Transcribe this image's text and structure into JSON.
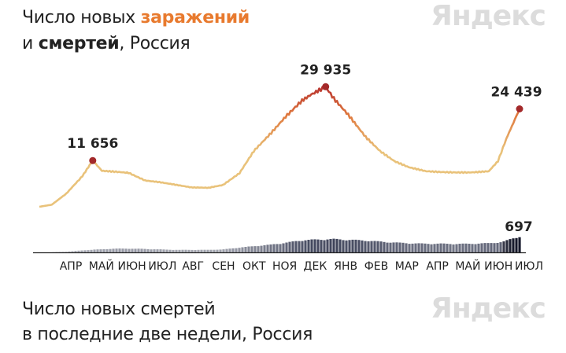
{
  "header": {
    "title_part1": "Число новых ",
    "title_accent": "заражений",
    "title_part2": "и ",
    "title_bold": "смертей",
    "title_part3": ", Россия"
  },
  "logo_text": "Яндекс",
  "footer": {
    "line1": "Число новых смертей",
    "line2": "в последние две недели, Россия"
  },
  "colors": {
    "cases_low": "#e9c27a",
    "cases_mid": "#e07b3f",
    "cases_high": "#b8322e",
    "peak_dot": "#a3292a",
    "deaths_bar": "#3a3f56",
    "deaths_bar_highlight": "#15182a",
    "accent": "#e87a2e"
  },
  "chart_data": [
    {
      "type": "line",
      "series": [
        {
          "values": [
            {
              "x": "2020-03-20",
              "y": 200
            },
            {
              "x": "2020-04-01",
              "y": 700
            },
            {
              "x": "2020-04-15",
              "y": 3400
            },
            {
              "x": "2020-05-01",
              "y": 7800
            },
            {
              "x": "2020-05-11",
              "y": 11656
            },
            {
              "x": "2020-05-20",
              "y": 9100
            },
            {
              "x": "2020-06-01",
              "y": 8900
            },
            {
              "x": "2020-06-15",
              "y": 8600
            },
            {
              "x": "2020-07-01",
              "y": 6700
            },
            {
              "x": "2020-07-15",
              "y": 6300
            },
            {
              "x": "2020-08-01",
              "y": 5600
            },
            {
              "x": "2020-08-15",
              "y": 5000
            },
            {
              "x": "2020-09-01",
              "y": 4900
            },
            {
              "x": "2020-09-15",
              "y": 5600
            },
            {
              "x": "2020-10-01",
              "y": 8500
            },
            {
              "x": "2020-10-15",
              "y": 14000
            },
            {
              "x": "2020-11-01",
              "y": 18500
            },
            {
              "x": "2020-11-15",
              "y": 22500
            },
            {
              "x": "2020-12-01",
              "y": 26500
            },
            {
              "x": "2020-12-10",
              "y": 28000
            },
            {
              "x": "2020-12-24",
              "y": 29935
            },
            {
              "x": "2021-01-01",
              "y": 27000
            },
            {
              "x": "2021-01-15",
              "y": 23000
            },
            {
              "x": "2021-02-01",
              "y": 17500
            },
            {
              "x": "2021-02-15",
              "y": 14000
            },
            {
              "x": "2021-03-01",
              "y": 11500
            },
            {
              "x": "2021-03-15",
              "y": 10000
            },
            {
              "x": "2021-04-01",
              "y": 9000
            },
            {
              "x": "2021-04-15",
              "y": 8800
            },
            {
              "x": "2021-05-01",
              "y": 8700
            },
            {
              "x": "2021-05-15",
              "y": 8700
            },
            {
              "x": "2021-06-01",
              "y": 9000
            },
            {
              "x": "2021-06-10",
              "y": 11500
            },
            {
              "x": "2021-06-18",
              "y": 17000
            },
            {
              "x": "2021-06-25",
              "y": 21000
            },
            {
              "x": "2021-07-01",
              "y": 24439
            }
          ]
        }
      ],
      "annotations": [
        {
          "label": "11 656",
          "x": "2020-05-11",
          "y": 11656
        },
        {
          "label": "29 935",
          "x": "2020-12-24",
          "y": 29935
        },
        {
          "label": "24 439",
          "x": "2021-07-01",
          "y": 24439
        }
      ],
      "ylim": [
        0,
        30000
      ],
      "grid": false
    },
    {
      "type": "bar",
      "series": [
        {
          "values": [
            {
              "x": "2020-04-01",
              "y": 5
            },
            {
              "x": "2020-04-15",
              "y": 25
            },
            {
              "x": "2020-05-01",
              "y": 90
            },
            {
              "x": "2020-05-15",
              "y": 125
            },
            {
              "x": "2020-06-01",
              "y": 160
            },
            {
              "x": "2020-06-15",
              "y": 165
            },
            {
              "x": "2020-07-01",
              "y": 150
            },
            {
              "x": "2020-07-15",
              "y": 130
            },
            {
              "x": "2020-08-01",
              "y": 110
            },
            {
              "x": "2020-08-15",
              "y": 110
            },
            {
              "x": "2020-09-01",
              "y": 110
            },
            {
              "x": "2020-09-15",
              "y": 130
            },
            {
              "x": "2020-10-01",
              "y": 210
            },
            {
              "x": "2020-10-15",
              "y": 270
            },
            {
              "x": "2020-11-01",
              "y": 340
            },
            {
              "x": "2020-11-15",
              "y": 420
            },
            {
              "x": "2020-12-01",
              "y": 530
            },
            {
              "x": "2020-12-15",
              "y": 560
            },
            {
              "x": "2021-01-01",
              "y": 580
            },
            {
              "x": "2021-01-15",
              "y": 550
            },
            {
              "x": "2021-02-01",
              "y": 520
            },
            {
              "x": "2021-02-15",
              "y": 470
            },
            {
              "x": "2021-03-01",
              "y": 430
            },
            {
              "x": "2021-03-15",
              "y": 400
            },
            {
              "x": "2021-04-01",
              "y": 380
            },
            {
              "x": "2021-04-15",
              "y": 380
            },
            {
              "x": "2021-05-01",
              "y": 370
            },
            {
              "x": "2021-05-15",
              "y": 380
            },
            {
              "x": "2021-06-01",
              "y": 400
            },
            {
              "x": "2021-06-15",
              "y": 460
            },
            {
              "x": "2021-06-25",
              "y": 620
            },
            {
              "x": "2021-07-01",
              "y": 697
            }
          ]
        }
      ],
      "annotations": [
        {
          "label": "697",
          "x": "2021-07-01",
          "y": 697
        }
      ],
      "ylim": [
        0,
        700
      ]
    }
  ],
  "x_axis": {
    "ticks": [
      "АПР",
      "МАЙ",
      "ИЮН",
      "ИЮЛ",
      "АВГ",
      "СЕН",
      "ОКТ",
      "НОЯ",
      "ДЕК",
      "ЯНВ",
      "ФЕВ",
      "МАР",
      "АПР",
      "МАЙ",
      "ИЮН",
      "ИЮЛ"
    ]
  }
}
